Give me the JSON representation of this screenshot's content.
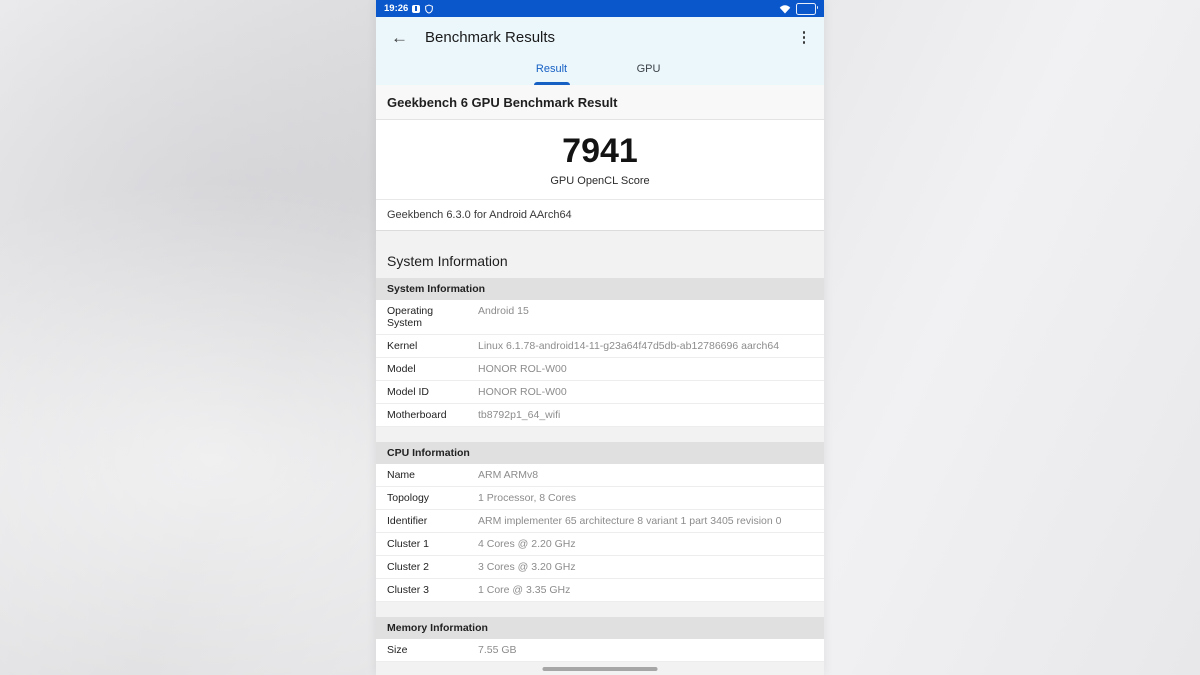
{
  "status_bar": {
    "time": "19:26"
  },
  "header": {
    "title": "Benchmark Results"
  },
  "tabs": [
    {
      "label": "Result",
      "active": true
    },
    {
      "label": "GPU",
      "active": false
    }
  ],
  "result": {
    "heading": "Geekbench 6 GPU Benchmark Result",
    "score": "7941",
    "score_label": "GPU OpenCL Score",
    "version": "Geekbench 6.3.0 for Android AArch64"
  },
  "section_title": "System Information",
  "tables": [
    {
      "header": "System Information",
      "rows": [
        {
          "label": "Operating System",
          "value": "Android 15"
        },
        {
          "label": "Kernel",
          "value": "Linux 6.1.78-android14-11-g23a64f47d5db-ab12786696 aarch64"
        },
        {
          "label": "Model",
          "value": "HONOR ROL-W00"
        },
        {
          "label": "Model ID",
          "value": "HONOR ROL-W00"
        },
        {
          "label": "Motherboard",
          "value": "tb8792p1_64_wifi"
        }
      ]
    },
    {
      "header": "CPU Information",
      "rows": [
        {
          "label": "Name",
          "value": "ARM ARMv8"
        },
        {
          "label": "Topology",
          "value": "1 Processor, 8 Cores"
        },
        {
          "label": "Identifier",
          "value": "ARM implementer 65 architecture 8 variant 1 part 3405 revision 0"
        },
        {
          "label": "Cluster 1",
          "value": "4 Cores @ 2.20 GHz"
        },
        {
          "label": "Cluster 2",
          "value": "3 Cores @ 3.20 GHz"
        },
        {
          "label": "Cluster 3",
          "value": "1 Core @ 3.35 GHz"
        }
      ]
    },
    {
      "header": "Memory Information",
      "rows": [
        {
          "label": "Size",
          "value": "7.55 GB"
        }
      ]
    }
  ],
  "colors": {
    "status_bar_bg": "#0a56cb",
    "header_bg": "#ecf7fc",
    "accent_blue": "#1660c4",
    "table_header_bg": "#e0e0e0"
  }
}
